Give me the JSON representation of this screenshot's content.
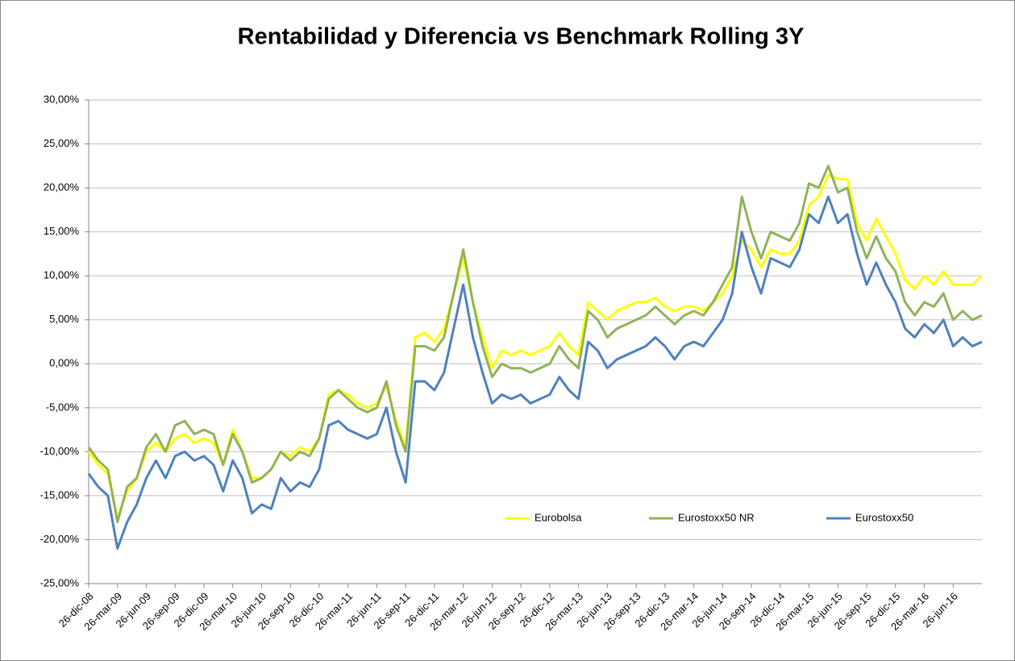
{
  "chart_data": {
    "type": "line",
    "title": "Rentabilidad y Diferencia vs Benchmark Rolling 3Y",
    "categories": [
      "26-dic-08",
      null,
      null,
      "26-mar-09",
      null,
      null,
      "26-jun-09",
      null,
      null,
      "26-sep-09",
      null,
      null,
      "26-dic-09",
      null,
      null,
      "26-mar-10",
      null,
      null,
      "26-jun-10",
      null,
      null,
      "26-sep-10",
      null,
      null,
      "26-dic-10",
      null,
      null,
      "26-mar-11",
      null,
      null,
      "26-jun-11",
      null,
      null,
      "26-sep-11",
      null,
      null,
      "26-dic-11",
      null,
      null,
      "26-mar-12",
      null,
      null,
      "26-jun-12",
      null,
      null,
      "26-sep-12",
      null,
      null,
      "26-dic-12",
      null,
      null,
      "26-mar-13",
      null,
      null,
      "26-jun-13",
      null,
      null,
      "26-sep-13",
      null,
      null,
      "26-dic-13",
      null,
      null,
      "26-mar-14",
      null,
      null,
      "26-jun-14",
      null,
      null,
      "26-sep-14",
      null,
      null,
      "26-dic-14",
      null,
      null,
      "26-mar-15",
      null,
      null,
      "26-jun-15",
      null,
      null,
      "26-sep-15",
      null,
      null,
      "26-dic-15",
      null,
      null,
      "26-mar-16",
      null,
      null,
      "26-jun-16",
      null,
      null,
      null
    ],
    "series": [
      {
        "name": "Eurobolsa",
        "color": "#ffff00",
        "values": [
          -10,
          -11.5,
          -12.5,
          -17.5,
          -14.5,
          -13,
          -10,
          -9,
          -10,
          -8.5,
          -8,
          -9,
          -8.5,
          -9,
          -11.5,
          -7.5,
          -10,
          -13,
          -13,
          -12,
          -10,
          -10.5,
          -9.5,
          -10,
          -8.5,
          -3.5,
          -3,
          -3.5,
          -4.5,
          -5,
          -4.5,
          -2.5,
          -6.5,
          -9.5,
          3,
          3.5,
          2.5,
          4,
          8,
          12,
          7,
          3,
          -0.5,
          1.5,
          1,
          1.5,
          1,
          1.5,
          2,
          3.5,
          2,
          1,
          7,
          6,
          5,
          6,
          6.5,
          7,
          7,
          7.5,
          6.5,
          6,
          6.5,
          6.5,
          6,
          7,
          8,
          10,
          14,
          13,
          11,
          13,
          12.5,
          12.5,
          14,
          18,
          19,
          21.5,
          21,
          21,
          16,
          14,
          16.5,
          14.5,
          12.5,
          9.5,
          8.5,
          10,
          9,
          10.5,
          9,
          9,
          9,
          10
        ]
      },
      {
        "name": "Eurostoxx50 NR",
        "color": "#8fb35a",
        "values": [
          -9.5,
          -11,
          -12,
          -18,
          -14,
          -13,
          -9.5,
          -8,
          -10,
          -7,
          -6.5,
          -8,
          -7.5,
          -8,
          -11.5,
          -8,
          -10,
          -13.5,
          -13,
          -12,
          -10,
          -11,
          -10,
          -10.5,
          -8.5,
          -4,
          -3,
          -4,
          -5,
          -5.5,
          -5,
          -2,
          -7,
          -10,
          2,
          2,
          1.5,
          3,
          8,
          13,
          7,
          2,
          -1.5,
          0,
          -0.5,
          -0.5,
          -1,
          -0.5,
          0,
          2,
          0.5,
          -0.5,
          6,
          5,
          3,
          4,
          4.5,
          5,
          5.5,
          6.5,
          5.5,
          4.5,
          5.5,
          6,
          5.5,
          7,
          9,
          11,
          19,
          15,
          12,
          15,
          14.5,
          14,
          16,
          20.5,
          20,
          22.5,
          19.5,
          20,
          15,
          12,
          14.5,
          12,
          10.5,
          7,
          5.5,
          7,
          6.5,
          8,
          5,
          6,
          5,
          5.5
        ]
      },
      {
        "name": "Eurostoxx50",
        "color": "#4f81bd",
        "values": [
          -12.5,
          -14,
          -15,
          -21,
          -18,
          -16,
          -13,
          -11,
          -13,
          -10.5,
          -10,
          -11,
          -10.5,
          -11.5,
          -14.5,
          -11,
          -13,
          -17,
          -16,
          -16.5,
          -13,
          -14.5,
          -13.5,
          -14,
          -12,
          -7,
          -6.5,
          -7.5,
          -8,
          -8.5,
          -8,
          -5,
          -10,
          -13.5,
          -2,
          -2,
          -3,
          -1,
          4,
          9,
          3,
          -1,
          -4.5,
          -3.5,
          -4,
          -3.5,
          -4.5,
          -4,
          -3.5,
          -1.5,
          -3,
          -4,
          2.5,
          1.5,
          -0.5,
          0.5,
          1,
          1.5,
          2,
          3,
          2,
          0.5,
          2,
          2.5,
          2,
          3.5,
          5,
          8,
          15,
          11,
          8,
          12,
          11.5,
          11,
          13,
          17,
          16,
          19,
          16,
          17,
          12.5,
          9,
          11.5,
          9,
          7,
          4,
          3,
          4.5,
          3.5,
          5,
          2,
          3,
          2,
          2.5
        ]
      }
    ],
    "ylim": [
      -25,
      30
    ],
    "yticks": [
      {
        "value": -25,
        "label": "-25,00%"
      },
      {
        "value": -20,
        "label": "-20,00%"
      },
      {
        "value": -15,
        "label": "-15,00%"
      },
      {
        "value": -10,
        "label": "-10,00%"
      },
      {
        "value": -5,
        "label": "-5,00%"
      },
      {
        "value": 0,
        "label": "0,00%"
      },
      {
        "value": 5,
        "label": "5,00%"
      },
      {
        "value": 10,
        "label": "10,00%"
      },
      {
        "value": 15,
        "label": "15,00%"
      },
      {
        "value": 20,
        "label": "20,00%"
      },
      {
        "value": 25,
        "label": "25,00%"
      },
      {
        "value": 30,
        "label": "30,00%"
      }
    ],
    "grid": true
  }
}
